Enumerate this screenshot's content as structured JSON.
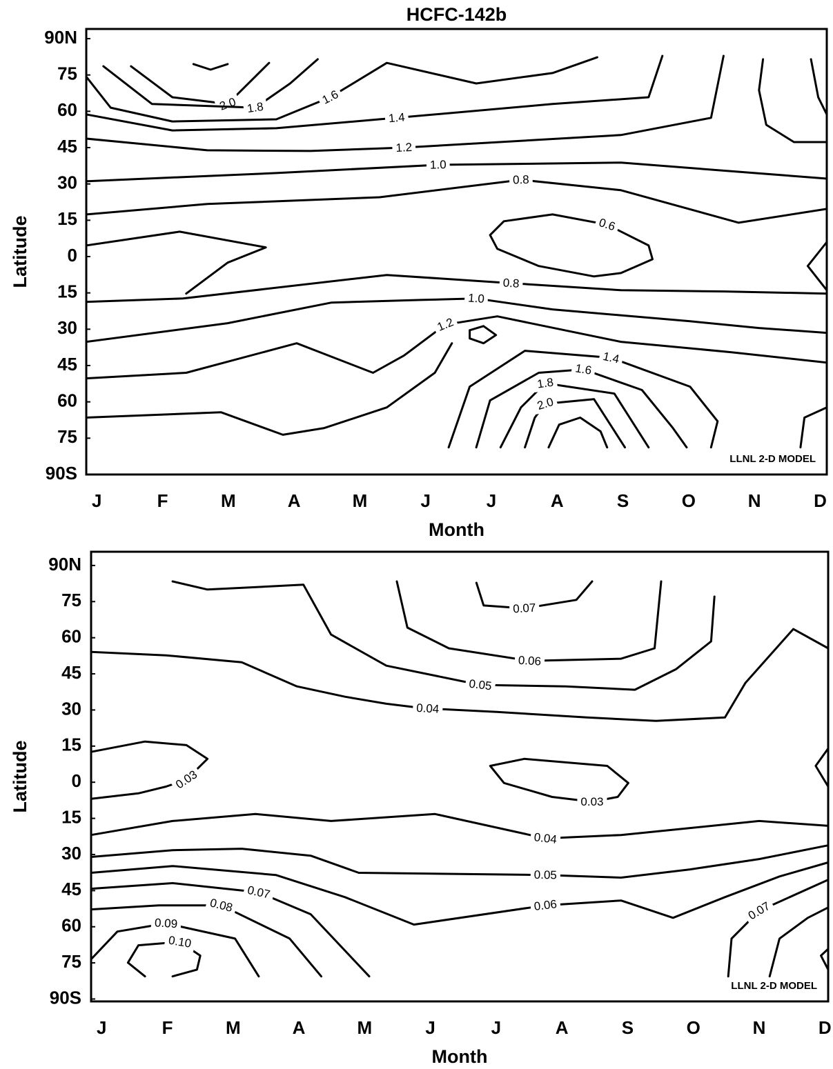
{
  "chart_data": [
    {
      "type": "contour",
      "title": "HCFC-142b",
      "xlabel": "Month",
      "ylabel": "Latitude",
      "annotation": "LLNL 2-D MODEL",
      "categories": [
        "J",
        "F",
        "M",
        "A",
        "M",
        "J",
        "J",
        "A",
        "S",
        "O",
        "N",
        "D"
      ],
      "xlim": [
        -0.16,
        11.1
      ],
      "ylim": [
        -90,
        94
      ],
      "yticks": [
        {
          "value": 90,
          "label": "90N"
        },
        75,
        60,
        45,
        30,
        15,
        0,
        {
          "value": -15,
          "label": "15"
        },
        {
          "value": -30,
          "label": "30"
        },
        {
          "value": -45,
          "label": "45"
        },
        {
          "value": -60,
          "label": "60"
        },
        {
          "value": -75,
          "label": "75"
        },
        {
          "value": -90,
          "label": "90S"
        }
      ],
      "contours": [
        {
          "x": [
            1.47,
            1.73,
            1.99
          ],
          "y": [
            79.5,
            77.2,
            79.5
          ]
        },
        {
          "level": 2.0,
          "label": "2.0",
          "x": [
            0.52,
            1.15,
            1.99,
            2.62
          ],
          "y": [
            78.6,
            65.8,
            63.0,
            80.0
          ]
        },
        {
          "level": 1.8,
          "label": "1.8",
          "x": [
            0.1,
            0.84,
            2.41,
            2.94,
            3.36
          ],
          "y": [
            78.6,
            63.0,
            61.5,
            71.5,
            81.5
          ]
        },
        {
          "level": 1.6,
          "label": "1.6",
          "x": [
            -0.16,
            0.21,
            1.15,
            2.73,
            3.55,
            4.41,
            5.77,
            6.93,
            7.61
          ],
          "y": [
            74.3,
            61.5,
            55.8,
            56.7,
            65.8,
            80.0,
            71.5,
            75.8,
            82.3
          ]
        },
        {
          "level": 1.4,
          "label": "1.4",
          "x": [
            -0.16,
            1.15,
            2.73,
            4.56,
            6.93,
            8.39,
            8.6
          ],
          "y": [
            58.7,
            52.1,
            53.0,
            57.3,
            63.0,
            65.8,
            82.9
          ]
        },
        {
          "level": 1.2,
          "label": "1.2",
          "x": [
            -0.16,
            1.68,
            3.25,
            4.67,
            7.97,
            9.34,
            9.53
          ],
          "y": [
            48.7,
            43.9,
            43.6,
            45.0,
            50.2,
            57.3,
            82.9
          ]
        },
        {
          "level": 1.0,
          "label": "1.0",
          "x": [
            -0.16,
            2.73,
            5.19,
            7.97,
            11.1
          ],
          "y": [
            31.1,
            34.5,
            37.9,
            38.8,
            32.2
          ]
        },
        {
          "level": 0.8,
          "label": "0.8",
          "x": [
            -0.16,
            1.68,
            4.3,
            6.45,
            7.97,
            9.76,
            11.1
          ],
          "y": [
            17.4,
            21.7,
            24.5,
            31.7,
            27.4,
            14.0,
            19.7
          ]
        },
        {
          "level": 0.6,
          "label": "0.6",
          "x": [
            6.72,
            6.09,
            5.98,
            6.19,
            6.93,
            7.76,
            8.39,
            8.45,
            7.97,
            7.56,
            6.72
          ],
          "y": [
            -3.9,
            3.2,
            8.9,
            14.6,
            17.4,
            13.2,
            4.6,
            -1.1,
            -6.8,
            -8.2,
            -3.9
          ]
        },
        {
          "x": [
            -0.16,
            1.26,
            2.57,
            1.99,
            1.36
          ],
          "y": [
            4.6,
            10.3,
            3.8,
            -2.5,
            -15.3
          ]
        },
        {
          "level": 0.8,
          "label": "0.8",
          "x": [
            -0.16,
            1.31,
            4.41,
            6.3,
            7.97,
            9.55,
            11.1
          ],
          "y": [
            -18.7,
            -17.3,
            -7.6,
            -11.0,
            -13.9,
            -14.4,
            -15.3
          ]
        },
        {
          "level": 1.0,
          "label": "1.0",
          "x": [
            -0.16,
            1.99,
            3.57,
            4.93,
            5.77,
            6.93,
            9.02,
            10.07,
            11.1
          ],
          "y": [
            -35.2,
            -27.5,
            -19.0,
            -17.9,
            -17.3,
            -21.8,
            -26.7,
            -29.5,
            -31.5
          ]
        },
        {
          "level": 1.2,
          "label": "1.2",
          "x": [
            -0.16,
            1.36,
            3.04,
            4.2,
            4.67,
            5.3,
            6.09,
            7.97,
            9.65,
            11.1
          ],
          "y": [
            -50.3,
            -48.0,
            -35.8,
            -48.0,
            -40.9,
            -28.1,
            -24.7,
            -35.2,
            -39.5,
            -43.8
          ]
        },
        {
          "x": [
            -0.16,
            1.89,
            2.83,
            3.46,
            4.41,
            5.14,
            5.4
          ],
          "y": [
            -66.5,
            -64.3,
            -73.6,
            -70.8,
            -62.3,
            -48.0,
            -35.8
          ]
        },
        {
          "x": [
            5.67,
            5.88,
            6.07,
            5.88,
            5.67,
            5.67
          ],
          "y": [
            -30.4,
            -28.7,
            -32.4,
            -35.8,
            -33.8,
            -30.4
          ]
        },
        {
          "level": 1.4,
          "label": "1.4",
          "x": [
            5.35,
            5.67,
            6.51,
            7.82,
            9.02,
            9.44,
            9.34
          ],
          "y": [
            -78.8,
            -53.7,
            -38.9,
            -41.8,
            -53.7,
            -68.0,
            -78.8
          ]
        },
        {
          "level": 1.6,
          "label": "1.6",
          "x": [
            5.77,
            5.98,
            6.72,
            7.4,
            8.29,
            8.76,
            8.97
          ],
          "y": [
            -78.8,
            -59.4,
            -48.0,
            -46.6,
            -55.1,
            -70.8,
            -78.8
          ]
        },
        {
          "level": 1.8,
          "label": "1.8",
          "x": [
            6.14,
            6.45,
            6.82,
            7.87,
            8.39
          ],
          "y": [
            -78.8,
            -62.3,
            -52.3,
            -56.6,
            -78.8
          ]
        },
        {
          "level": 2.0,
          "label": "2.0",
          "x": [
            6.51,
            6.66,
            6.82,
            7.56,
            8.03
          ],
          "y": [
            -78.8,
            -66.5,
            -60.8,
            -58.9,
            -78.8
          ]
        },
        {
          "x": [
            6.87,
            7.03,
            7.35,
            7.66,
            7.76
          ],
          "y": [
            -78.8,
            -69.4,
            -66.5,
            -72.2,
            -78.8
          ]
        },
        {
          "x": [
            10.7,
            10.76,
            11.1
          ],
          "y": [
            -78.8,
            -66.5,
            -62.3
          ]
        },
        {
          "x": [
            11.1,
            10.81,
            11.1
          ],
          "y": [
            6.0,
            -3.9,
            -13.9
          ]
        },
        {
          "x": [
            10.13,
            10.07,
            10.18,
            10.6,
            11.1
          ],
          "y": [
            81.5,
            68.7,
            54.4,
            47.3,
            47.3
          ]
        },
        {
          "x": [
            10.86,
            10.97,
            11.1
          ],
          "y": [
            81.5,
            65.8,
            58.7
          ]
        }
      ]
    },
    {
      "type": "contour",
      "xlabel": "Month",
      "ylabel": "Latitude",
      "annotation": "LLNL 2-D MODEL",
      "categories": [
        "J",
        "F",
        "M",
        "A",
        "M",
        "J",
        "J",
        "A",
        "S",
        "O",
        "N",
        "D"
      ],
      "xlim": [
        -0.16,
        11.05
      ],
      "ylim": [
        -91,
        95.7
      ],
      "yticks": [
        {
          "value": 90,
          "label": "90N"
        },
        75,
        60,
        45,
        30,
        15,
        0,
        {
          "value": -15,
          "label": "15"
        },
        {
          "value": -30,
          "label": "30"
        },
        {
          "value": -45,
          "label": "45"
        },
        {
          "value": -60,
          "label": "60"
        },
        {
          "value": -75,
          "label": "75"
        },
        {
          "value": -90,
          "label": "90S"
        }
      ],
      "contours": [
        {
          "level": 0.07,
          "label": "0.07",
          "x": [
            5.7,
            5.81,
            6.43,
            7.22,
            7.46
          ],
          "y": [
            82.8,
            73.4,
            72.2,
            75.7,
            83.4
          ]
        },
        {
          "level": 0.06,
          "label": "0.06",
          "x": [
            4.49,
            4.65,
            5.28,
            6.51,
            7.9,
            8.41,
            8.51
          ],
          "y": [
            83.4,
            64.2,
            55.6,
            50.4,
            51.3,
            55.6,
            83.4
          ]
        },
        {
          "level": 0.05,
          "label": "0.05",
          "x": [
            1.08,
            1.61,
            3.07,
            3.49,
            4.33,
            5.76,
            7.06,
            8.11,
            8.74,
            9.27,
            9.32
          ],
          "y": [
            83.4,
            80.0,
            82.0,
            61.3,
            48.4,
            40.4,
            39.8,
            38.4,
            47.0,
            58.5,
            77.1
          ]
        },
        {
          "level": 0.04,
          "label": "0.04",
          "x": [
            -0.16,
            0.98,
            2.13,
            2.97,
            3.7,
            4.33,
            4.75,
            4.96,
            6.01,
            7.38,
            8.43,
            9.48,
            9.79,
            10.52,
            11.05
          ],
          "y": [
            54.1,
            52.7,
            49.8,
            39.8,
            35.5,
            32.6,
            31.2,
            30.6,
            29.2,
            26.9,
            25.5,
            26.9,
            41.2,
            63.6,
            55.6
          ]
        },
        {
          "level": 0.03,
          "label": "0.03",
          "x": [
            -0.16,
            0.66,
            1.29,
            1.61,
            1.29,
            0.98,
            0.56,
            -0.16
          ],
          "y": [
            12.6,
            16.9,
            15.4,
            9.7,
            1.1,
            -1.8,
            -4.6,
            -6.9
          ]
        },
        {
          "level": 0.03,
          "label": "0.03",
          "x": [
            6.43,
            7.69,
            8.01,
            7.85,
            7.46,
            6.85,
            6.12,
            5.91,
            6.43
          ],
          "y": [
            9.7,
            6.8,
            -0.3,
            -6.1,
            -8.1,
            -6.1,
            -0.3,
            6.8,
            9.7
          ]
        },
        {
          "x": [
            11.05,
            10.86,
            11.05
          ],
          "y": [
            14.0,
            6.8,
            -1.8
          ]
        },
        {
          "level": 0.04,
          "label": "0.04",
          "x": [
            -0.16,
            1.08,
            2.34,
            3.49,
            5.07,
            6.75,
            7.9,
            8.95,
            10.0,
            11.05
          ],
          "y": [
            -21.9,
            -16.1,
            -13.2,
            -16.1,
            -13.2,
            -23.3,
            -21.9,
            -19.0,
            -16.1,
            -18.1
          ]
        },
        {
          "level": 0.05,
          "label": "0.05",
          "x": [
            -0.16,
            1.08,
            2.13,
            3.18,
            3.91,
            6.75,
            7.9,
            8.95,
            10.0,
            11.05
          ],
          "y": [
            -31.0,
            -28.2,
            -27.6,
            -30.5,
            -37.6,
            -38.5,
            -39.6,
            -36.2,
            -31.9,
            -26.2
          ]
        },
        {
          "level": 0.06,
          "label": "0.06",
          "x": [
            -0.16,
            1.08,
            2.65,
            3.7,
            4.75,
            6.75,
            7.9,
            8.69,
            9.48,
            10.31,
            11.05
          ],
          "y": [
            -37.6,
            -34.8,
            -38.5,
            -47.7,
            -59.1,
            -51.1,
            -49.1,
            -56.3,
            -47.7,
            -39.1,
            -33.3
          ]
        },
        {
          "level": 0.07,
          "label": "0.07",
          "x": [
            -0.16,
            1.08,
            2.39,
            3.18,
            4.07
          ],
          "y": [
            -44.2,
            -41.9,
            -45.7,
            -54.8,
            -80.6
          ]
        },
        {
          "level": 0.08,
          "label": "0.08",
          "x": [
            -0.16,
            0.87,
            1.82,
            2.86,
            3.34
          ],
          "y": [
            -52.8,
            -51.1,
            -51.1,
            -64.9,
            -80.6
          ]
        },
        {
          "level": 0.09,
          "label": "0.09",
          "x": [
            -0.16,
            0.24,
            0.98,
            2.03,
            2.39
          ],
          "y": [
            -73.5,
            -62.0,
            -58.6,
            -64.9,
            -80.6
          ]
        },
        {
          "level": 0.1,
          "label": "0.10",
          "x": [
            1.08,
            1.45,
            1.5,
            1.19,
            0.56,
            0.4,
            0.66
          ],
          "y": [
            -80.6,
            -77.8,
            -72.0,
            -66.3,
            -67.7,
            -74.9,
            -80.6
          ]
        },
        {
          "level": 0.07,
          "label": "0.07",
          "x": [
            9.53,
            9.58,
            10.0,
            11.05
          ],
          "y": [
            -80.6,
            -64.9,
            -53.4,
            -40.5
          ]
        },
        {
          "x": [
            10.16,
            10.31,
            10.74,
            11.05
          ],
          "y": [
            -80.6,
            -64.9,
            -56.3,
            -52.0
          ]
        },
        {
          "x": [
            11.05,
            10.94,
            11.05
          ],
          "y": [
            -69.2,
            -72.0,
            -77.8
          ]
        }
      ]
    }
  ]
}
